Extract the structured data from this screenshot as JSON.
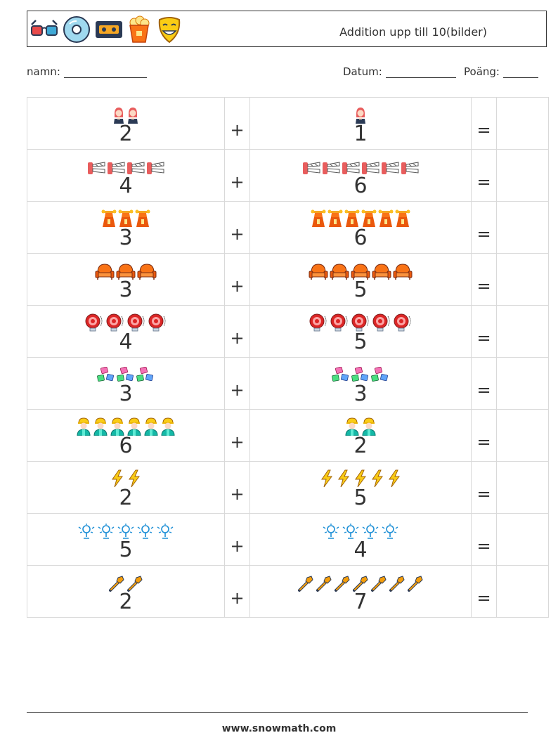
{
  "header": {
    "title": "Addition upp till 10(bilder)",
    "icons": [
      "3d-glasses-icon",
      "cd-disc-icon",
      "vhs-tape-icon",
      "popcorn-icon",
      "comedy-mask-icon"
    ]
  },
  "fields": {
    "name_label": "namn:",
    "date_label": "Datum:",
    "score_label": "Poäng:"
  },
  "operators": {
    "plus": "+",
    "equals": "="
  },
  "problems": [
    {
      "a": 2,
      "b": 1,
      "icon": "actress-icon"
    },
    {
      "a": 4,
      "b": 6,
      "icon": "clapperboard-icon"
    },
    {
      "a": 3,
      "b": 6,
      "icon": "stage-lights-icon"
    },
    {
      "a": 3,
      "b": 5,
      "icon": "cinema-seat-icon"
    },
    {
      "a": 4,
      "b": 5,
      "icon": "spotlight-icon"
    },
    {
      "a": 3,
      "b": 3,
      "icon": "tickets-icon"
    },
    {
      "a": 6,
      "b": 2,
      "icon": "worker-icon"
    },
    {
      "a": 2,
      "b": 5,
      "icon": "lightning-icon"
    },
    {
      "a": 5,
      "b": 4,
      "icon": "sprinkler-icon"
    },
    {
      "a": 2,
      "b": 7,
      "icon": "pipe-wrench-icon"
    }
  ],
  "footer": {
    "site": "www.snowmath.com"
  }
}
